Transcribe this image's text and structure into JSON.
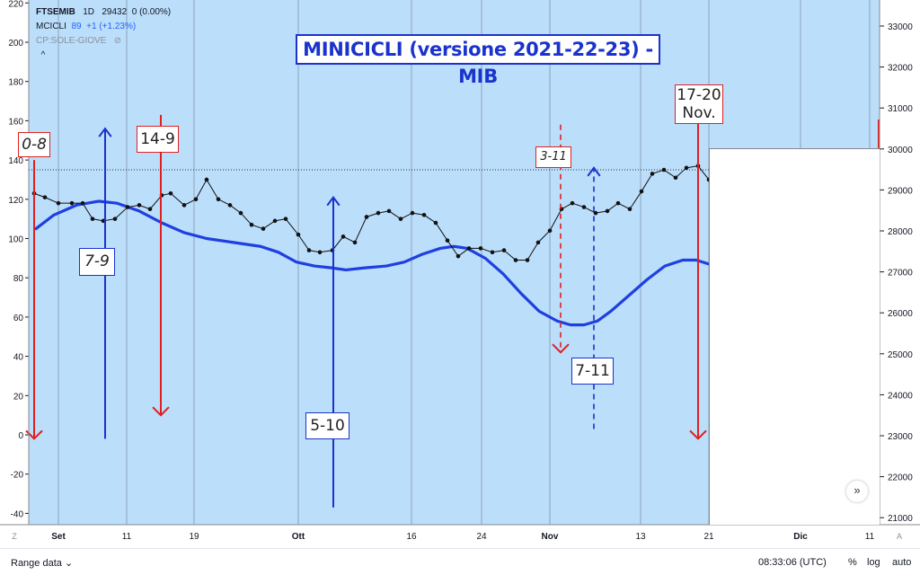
{
  "legend": {
    "symbol": "FTSEMIB",
    "interval": "1D",
    "price": "29432",
    "change": "0 (0.00%)",
    "indicator_name": "MCICLI",
    "indicator_value": "89",
    "indicator_change": "+1 (+1.23%)",
    "overlay": "CP:SOLE-GIOVE",
    "collapse_glyph": "^"
  },
  "title": "MINICICLI (versione 2021-22-23) - MIB",
  "annotations": {
    "lbl_08": "0-8",
    "lbl_149": "14-9",
    "lbl_79": "7-9",
    "lbl_510": "5-10",
    "lbl_311": "3-11",
    "lbl_711": "7-11",
    "lbl_1720_a": "17-20",
    "lbl_1720_b": "Nov."
  },
  "bottom": {
    "range_label": "Range data",
    "time": "08:33:06 (UTC)",
    "percent": "%",
    "log": "log",
    "auto": "auto"
  },
  "corner_left": "Z",
  "corner_right": "A",
  "scroll_glyph": "»",
  "colors": {
    "background": "#bbdefb",
    "cycle_line": "#1f3fe0",
    "price_line": "#111111",
    "red": "#e02020",
    "blue": "#1a33cc"
  },
  "chart_data": {
    "type": "line",
    "left_axis": {
      "ticks": [
        220,
        200,
        180,
        160,
        140,
        120,
        100,
        80,
        60,
        40,
        20,
        0,
        -20,
        -40
      ],
      "range": [
        -45,
        222
      ]
    },
    "right_axis": {
      "ticks": [
        33000,
        32000,
        31000,
        30000,
        29000,
        28000,
        27000,
        26000,
        25000,
        24000,
        23000,
        22000,
        21000
      ]
    },
    "x_ticks": [
      "Set",
      "11",
      "19",
      "Ott",
      "16",
      "24",
      "Nov",
      "13",
      "21",
      "Dic",
      "11"
    ],
    "series": [
      {
        "name": "MCICLI",
        "values": [
          [
            40,
            105
          ],
          [
            60,
            112
          ],
          [
            85,
            117
          ],
          [
            110,
            119
          ],
          [
            130,
            118
          ],
          [
            155,
            114
          ],
          [
            180,
            108
          ],
          [
            205,
            103
          ],
          [
            230,
            100
          ],
          [
            260,
            98
          ],
          [
            290,
            96
          ],
          [
            310,
            93
          ],
          [
            330,
            88
          ],
          [
            350,
            86
          ],
          [
            370,
            85
          ],
          [
            385,
            84
          ],
          [
            405,
            85
          ],
          [
            430,
            86
          ],
          [
            450,
            88
          ],
          [
            470,
            92
          ],
          [
            490,
            95
          ],
          [
            505,
            96
          ],
          [
            520,
            95
          ],
          [
            540,
            90
          ],
          [
            560,
            82
          ],
          [
            580,
            72
          ],
          [
            600,
            63
          ],
          [
            620,
            58
          ],
          [
            635,
            56
          ],
          [
            650,
            56
          ],
          [
            665,
            58
          ],
          [
            680,
            63
          ],
          [
            700,
            71
          ],
          [
            720,
            79
          ],
          [
            740,
            86
          ],
          [
            760,
            89
          ],
          [
            775,
            89
          ],
          [
            789,
            87
          ]
        ]
      },
      {
        "name": "FTSEMIB",
        "values": [
          [
            38,
            123
          ],
          [
            50,
            121
          ],
          [
            65,
            118
          ],
          [
            80,
            118
          ],
          [
            92,
            118
          ],
          [
            103,
            110
          ],
          [
            115,
            109
          ],
          [
            128,
            110
          ],
          [
            142,
            116
          ],
          [
            155,
            117
          ],
          [
            167,
            115
          ],
          [
            180,
            122
          ],
          [
            190,
            123
          ],
          [
            205,
            117
          ],
          [
            218,
            120
          ],
          [
            230,
            130
          ],
          [
            243,
            120
          ],
          [
            256,
            117
          ],
          [
            268,
            113
          ],
          [
            280,
            107
          ],
          [
            293,
            105
          ],
          [
            306,
            109
          ],
          [
            318,
            110
          ],
          [
            332,
            102
          ],
          [
            344,
            94
          ],
          [
            356,
            93
          ],
          [
            370,
            94
          ],
          [
            382,
            101
          ],
          [
            395,
            98
          ],
          [
            408,
            111
          ],
          [
            421,
            113
          ],
          [
            433,
            114
          ],
          [
            446,
            110
          ],
          [
            459,
            113
          ],
          [
            472,
            112
          ],
          [
            485,
            108
          ],
          [
            498,
            99
          ],
          [
            510,
            91
          ],
          [
            522,
            95
          ],
          [
            535,
            95
          ],
          [
            548,
            93
          ],
          [
            561,
            94
          ],
          [
            574,
            89
          ],
          [
            587,
            89
          ],
          [
            599,
            98
          ],
          [
            612,
            104
          ],
          [
            625,
            115
          ],
          [
            637,
            118
          ],
          [
            650,
            116
          ],
          [
            663,
            113
          ],
          [
            676,
            114
          ],
          [
            688,
            118
          ],
          [
            701,
            115
          ],
          [
            714,
            124
          ],
          [
            726,
            133
          ],
          [
            739,
            135
          ],
          [
            752,
            131
          ],
          [
            764,
            136
          ],
          [
            777,
            137
          ],
          [
            789,
            130
          ]
        ]
      }
    ],
    "arrows": [
      {
        "color": "red",
        "style": "solid",
        "dir": "down",
        "x": 38,
        "from": 140,
        "to": -2
      },
      {
        "color": "blue",
        "style": "solid",
        "dir": "up",
        "x": 117,
        "from": -2,
        "to": 156
      },
      {
        "color": "red",
        "style": "solid",
        "dir": "down",
        "x": 179,
        "from": 163,
        "to": 10
      },
      {
        "color": "blue",
        "style": "solid",
        "dir": "up",
        "x": 371,
        "from": -37,
        "to": 121
      },
      {
        "color": "red",
        "style": "dashed",
        "dir": "down",
        "x": 624,
        "from": 158,
        "to": 42
      },
      {
        "color": "blue",
        "style": "dashed",
        "dir": "up",
        "x": 661,
        "from": 3,
        "to": 136
      },
      {
        "color": "red",
        "style": "solid",
        "dir": "down",
        "x": 777,
        "from": 160,
        "to": -2
      }
    ]
  }
}
